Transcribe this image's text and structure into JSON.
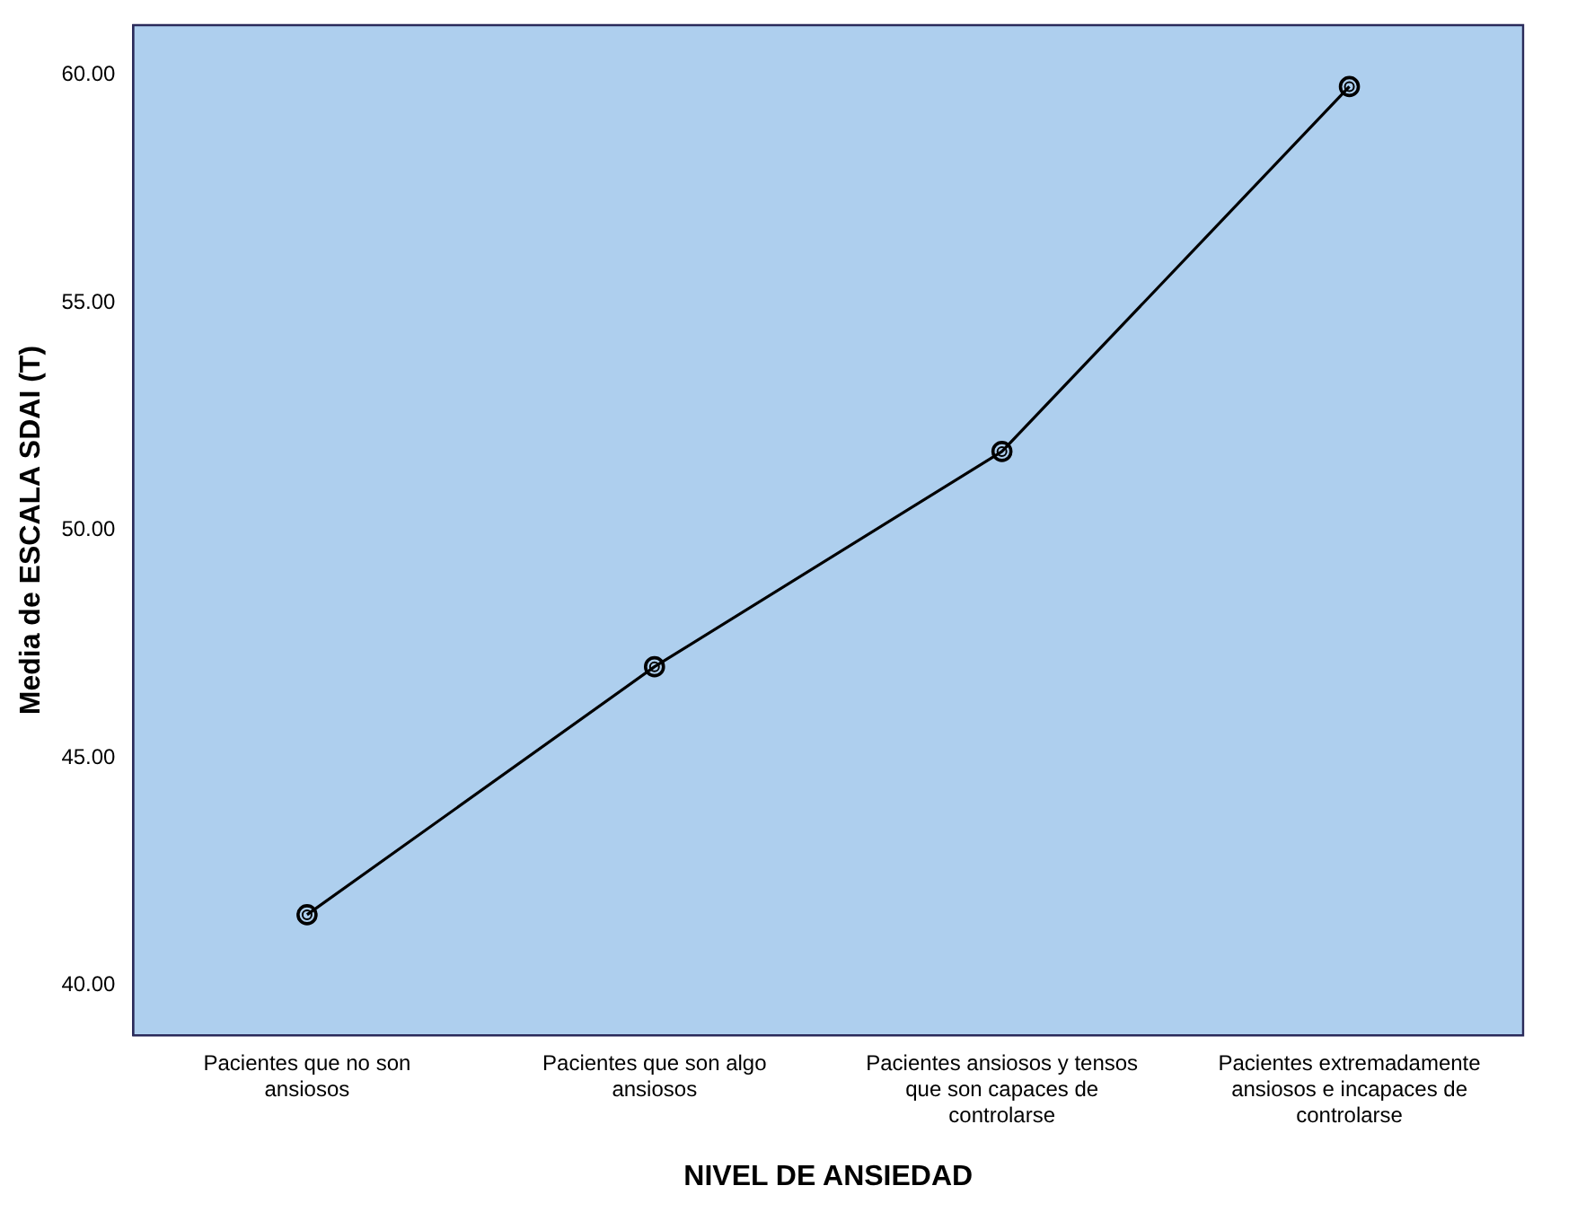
{
  "chart_data": {
    "type": "line",
    "xlabel": "NIVEL DE ANSIEDAD",
    "ylabel": "Media de ESCALA SDAI (T)",
    "categories": [
      "Pacientes que no son ansiosos",
      "Pacientes que son algo ansiosos",
      "Pacientes ansiosos y tensos que son capaces de controlarse",
      "Pacientes extremadamente ansiosos e incapaces de controlarse"
    ],
    "series": [
      {
        "color": "#000000",
        "values": [
          41.55,
          47.0,
          51.73,
          59.75
        ]
      }
    ],
    "ylim": [
      38.9,
      61.1
    ],
    "yticks": [
      {
        "value": 40,
        "label": "40.00"
      },
      {
        "value": 45,
        "label": "45.00"
      },
      {
        "value": 50,
        "label": "50.00"
      },
      {
        "value": 55,
        "label": "55.00"
      },
      {
        "value": 60,
        "label": "60.00"
      }
    ],
    "grid": false,
    "legend": false,
    "marker": "circle",
    "line_style": "solid"
  }
}
